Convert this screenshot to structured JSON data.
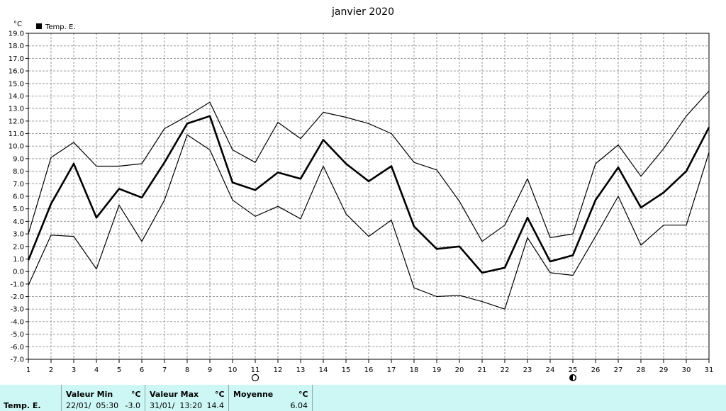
{
  "chart_data": {
    "type": "line",
    "title": "janvier 2020",
    "ylabel": "°C",
    "ylim": [
      -7.0,
      19.0
    ],
    "y_ticks": [
      "19.0",
      "18.0",
      "17.0",
      "16.0",
      "15.0",
      "14.0",
      "13.0",
      "12.0",
      "11.0",
      "10.0",
      "9.0",
      "8.0",
      "7.0",
      "6.0",
      "5.0",
      "4.0",
      "3.0",
      "2.0",
      "1.0",
      "0.0",
      "-1.0",
      "-2.0",
      "-3.0",
      "-4.0",
      "-5.0",
      "-6.0",
      "-7.0"
    ],
    "x_ticks": [
      "1",
      "2",
      "3",
      "4",
      "5",
      "6",
      "7",
      "8",
      "9",
      "10",
      "11",
      "12",
      "13",
      "14",
      "15",
      "16",
      "17",
      "18",
      "19",
      "20",
      "21",
      "22",
      "23",
      "24",
      "25",
      "26",
      "27",
      "28",
      "29",
      "30",
      "31"
    ],
    "grid": true,
    "legend_position": "top-left",
    "legend": [
      {
        "label": "Temp. E.",
        "color": "#000000"
      }
    ],
    "moon_phases": [
      {
        "day": 11,
        "phase": "full-moon"
      },
      {
        "day": 25,
        "phase": "new-moon"
      }
    ],
    "series": [
      {
        "name": "Temp. E.",
        "role": "max",
        "stroke_width": 1.2,
        "values": [
          3.0,
          9.1,
          10.3,
          8.4,
          8.4,
          8.6,
          11.4,
          12.4,
          13.5,
          9.7,
          8.7,
          11.9,
          10.6,
          12.7,
          12.3,
          11.8,
          11.0,
          8.7,
          8.1,
          5.6,
          2.4,
          3.7,
          7.4,
          2.7,
          3.0,
          8.6,
          10.1,
          7.6,
          9.8,
          12.4,
          14.4
        ]
      },
      {
        "name": "Temp. E.",
        "role": "mean",
        "stroke_width": 2.6,
        "values": [
          0.9,
          5.4,
          8.6,
          4.3,
          6.6,
          5.9,
          8.7,
          11.8,
          12.4,
          7.1,
          6.5,
          7.9,
          7.4,
          10.5,
          8.6,
          7.2,
          8.4,
          3.6,
          1.8,
          2.0,
          -0.1,
          0.3,
          4.3,
          0.8,
          1.3,
          5.7,
          8.3,
          5.1,
          6.3,
          8.0,
          11.5
        ]
      },
      {
        "name": "Temp. E.",
        "role": "min",
        "stroke_width": 1.2,
        "values": [
          -1.1,
          2.9,
          2.8,
          0.2,
          5.3,
          2.4,
          5.7,
          10.9,
          9.7,
          5.7,
          4.4,
          5.2,
          4.2,
          8.4,
          4.6,
          2.8,
          4.1,
          -1.3,
          -2.0,
          -1.9,
          -2.4,
          -3.0,
          2.7,
          -0.1,
          -0.3,
          2.8,
          6.0,
          2.1,
          3.7,
          3.7,
          9.5
        ]
      }
    ]
  },
  "footer": {
    "row_label": "Temp. E.",
    "min_header": "Valeur Min",
    "min_unit": "°C",
    "min_date": "22/01/  05:30",
    "min_value": "-3.0",
    "max_header": "Valeur Max",
    "max_unit": "°C",
    "max_date": "31/01/  13:20",
    "max_value": "14.4",
    "mean_header": "Moyenne",
    "mean_unit": "°C",
    "mean_value": "6.04"
  },
  "colors": {
    "footer_bg": "#ccf7f5",
    "grid": "#9a9a9a",
    "line": "#000000"
  }
}
